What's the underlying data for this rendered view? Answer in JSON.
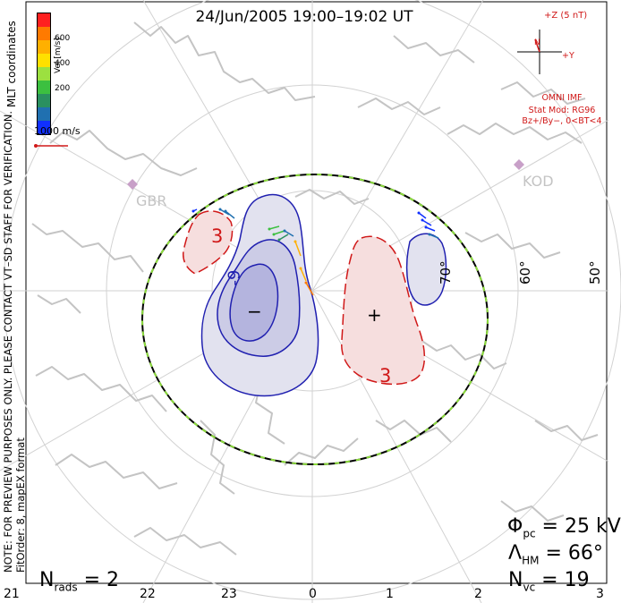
{
  "title": "24/Jun/2005 19:00–19:02 UT",
  "coordinates_label": "MLT coordinates",
  "color_scale": {
    "label": "Vel [m/s]",
    "ticks": [
      "600",
      "400",
      "200"
    ],
    "colors": [
      "#ff2020",
      "#ff7a00",
      "#ffb000",
      "#ffe000",
      "#9ce040",
      "#3cc040",
      "#2a9060",
      "#2070b0",
      "#1030ff"
    ]
  },
  "reference_vector": {
    "label": "1000 m/s",
    "color": "#d01818"
  },
  "notes": {
    "preview": "NOTE: FOR PREVIEW PURPOSES ONLY. PLEASE CONTACT VT–SD STAFF FOR VERIFICATION.",
    "fit": "FitOrder: 8, mapEX format"
  },
  "imf": {
    "z_label": "+Z (5 nT)",
    "y_label": "+Y",
    "source": "OMNI IMF",
    "model_line1": "Stat Mod: RG96",
    "model_line2": "Bz+/By−, 0<BT<4"
  },
  "stations": [
    "GBR",
    "KOD"
  ],
  "latitude_labels": [
    "60°",
    "50°",
    "70°"
  ],
  "contour_labels": [
    "3",
    "3",
    "-9"
  ],
  "potential_markers": {
    "min": "−",
    "max": "+"
  },
  "stats": {
    "phi_pc": {
      "symbol": "Φ",
      "sub": "pc",
      "rest": " = 25 kV"
    },
    "lambda_hm": {
      "symbol": "Λ",
      "sub": "HM",
      "rest": " = 66°"
    },
    "n_vc": {
      "symbol": "N",
      "sub": "vc",
      "rest": " = 19"
    },
    "n_rads": {
      "symbol": "N",
      "sub": "rads",
      "rest": " = 2"
    }
  },
  "mlt_hours": [
    "21",
    "22",
    "23",
    "0",
    "1",
    "2",
    "3"
  ]
}
